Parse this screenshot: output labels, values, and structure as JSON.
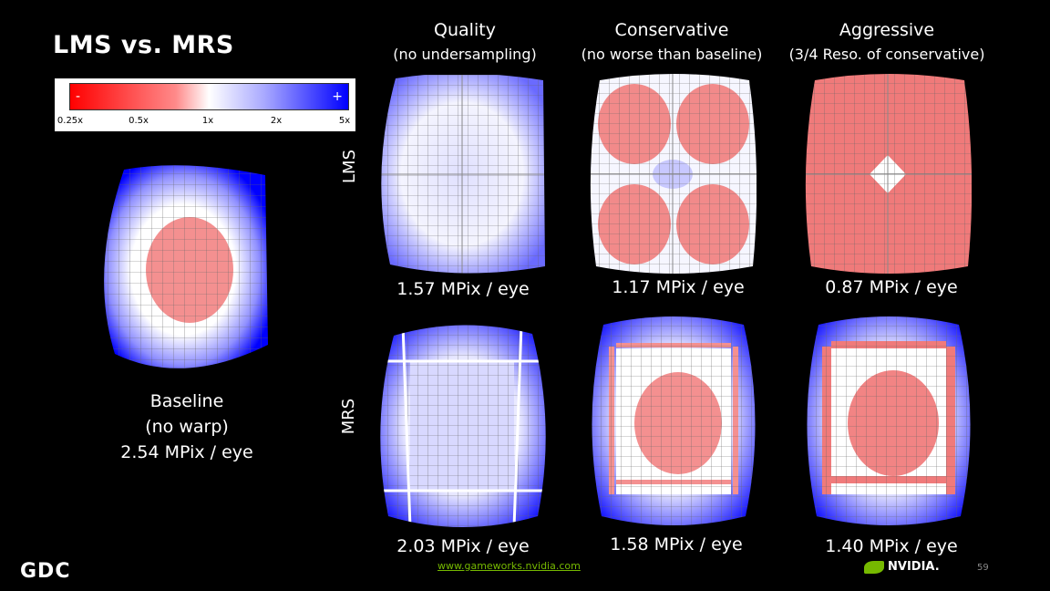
{
  "title": "LMS vs. MRS",
  "legend": {
    "ticks": [
      "0.25x",
      "0.5x",
      "1x",
      "2x",
      "5x"
    ],
    "minus_sign": "-",
    "plus_sign": "+"
  },
  "columns": [
    {
      "heading": "Quality",
      "subheading": "(no undersampling)"
    },
    {
      "heading": "Conservative",
      "subheading": "(no worse than baseline)"
    },
    {
      "heading": "Aggressive",
      "subheading": "(3/4 Reso. of conservative)"
    }
  ],
  "row_labels": {
    "lms": "LMS",
    "mrs": "MRS"
  },
  "lms_values": [
    "1.57 MPix / eye",
    "1.17 MPix / eye",
    "0.87 MPix / eye"
  ],
  "mrs_values": [
    "2.03 MPix / eye",
    "1.58 MPix / eye",
    "1.40 MPix / eye"
  ],
  "baseline": {
    "line1": "Baseline",
    "line2": "(no warp)",
    "line3": "2.54 MPix / eye"
  },
  "footer": {
    "url": "www.gameworks.nvidia.com",
    "page_number": "59",
    "gdc_logo": "GDC",
    "nvidia_logo": "NVIDIA."
  },
  "colors": {
    "red": "#ff0000",
    "white": "#ffffff",
    "blue": "#0000ff",
    "nvidia_green": "#76b900"
  }
}
